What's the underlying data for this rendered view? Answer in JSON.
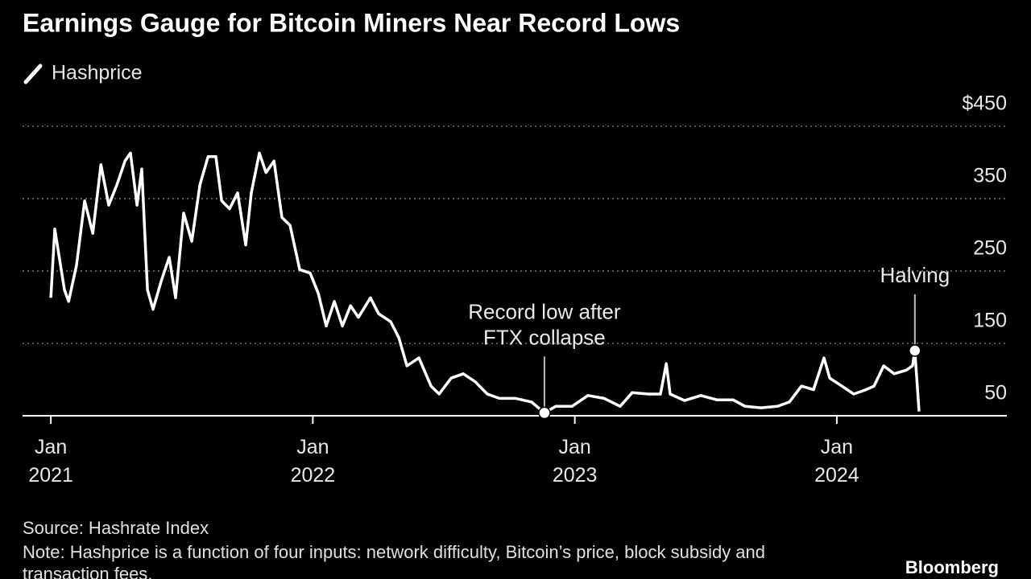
{
  "chart_data": {
    "type": "line",
    "title": "Earnings Gauge for Bitcoin Miners Near Record Lows",
    "series": [
      {
        "name": "Hashprice",
        "color": "#ffffff",
        "x": [
          2021.0,
          2021.015,
          2021.052,
          2021.068,
          2021.098,
          2021.129,
          2021.16,
          2021.191,
          2021.221,
          2021.252,
          2021.283,
          2021.304,
          2021.329,
          2021.347,
          2021.369,
          2021.39,
          2021.421,
          2021.452,
          2021.476,
          2021.507,
          2021.538,
          2021.569,
          2021.6,
          2021.63,
          2021.652,
          2021.682,
          2021.713,
          2021.744,
          2021.765,
          2021.796,
          2021.821,
          2021.852,
          2021.882,
          2021.913,
          2021.95,
          2021.99,
          2022.021,
          2022.051,
          2022.082,
          2022.113,
          2022.144,
          2022.174,
          2022.22,
          2022.251,
          2022.297,
          2022.328,
          2022.359,
          2022.405,
          2022.451,
          2022.482,
          2022.528,
          2022.574,
          2022.62,
          2022.666,
          2022.712,
          2022.774,
          2022.835,
          2022.884,
          2022.927,
          2022.989,
          2023.05,
          2023.112,
          2023.173,
          2023.219,
          2023.281,
          2023.327,
          2023.349,
          2023.364,
          2023.419,
          2023.481,
          2023.542,
          2023.604,
          2023.65,
          2023.711,
          2023.773,
          2023.819,
          2023.865,
          2023.911,
          2023.951,
          2023.973,
          2024.019,
          2024.065,
          2024.111,
          2024.142,
          2024.179,
          2024.219,
          2024.265,
          2024.289,
          2024.298,
          2024.314
        ],
        "values": [
          213,
          308,
          224,
          208,
          258,
          347,
          302,
          397,
          341,
          369,
          402,
          413,
          341,
          391,
          224,
          197,
          236,
          269,
          213,
          330,
          291,
          369,
          408,
          408,
          347,
          336,
          358,
          286,
          358,
          413,
          386,
          402,
          324,
          313,
          252,
          247,
          219,
          174,
          208,
          174,
          202,
          186,
          213,
          191,
          180,
          158,
          119,
          130,
          91,
          80,
          102,
          108,
          97,
          80,
          74,
          74,
          69,
          54,
          63,
          63,
          78,
          74,
          63,
          82,
          80,
          80,
          122,
          80,
          71,
          78,
          72,
          72,
          63,
          61,
          63,
          69,
          91,
          86,
          130,
          102,
          91,
          80,
          86,
          91,
          119,
          108,
          113,
          119,
          140,
          56
        ]
      }
    ],
    "xlim": [
      2020.892,
      2024.649
    ],
    "xticks": [
      {
        "value": 2021,
        "label": "Jan 2021"
      },
      {
        "value": 2022,
        "label": "Jan 2022"
      },
      {
        "value": 2023,
        "label": "Jan 2023"
      },
      {
        "value": 2024,
        "label": "Jan 2024"
      }
    ],
    "ylim": [
      50,
      450
    ],
    "yticks": [
      50,
      150,
      250,
      350,
      {
        "value": 450,
        "label": "$450"
      }
    ],
    "grid": true,
    "annotations": [
      {
        "lines": [
          "Record low after",
          "FTX collapse"
        ],
        "x": 2022.884,
        "y": 54
      },
      {
        "lines": [
          "Halving"
        ],
        "x": 2024.298,
        "y": 140
      }
    ],
    "source": "Source: Hashrate Index",
    "note": "Note: Hashprice is a function of four inputs: network difficulty, Bitcoin’s price, block subsidy and transaction fees.",
    "brand": "Bloomberg"
  }
}
